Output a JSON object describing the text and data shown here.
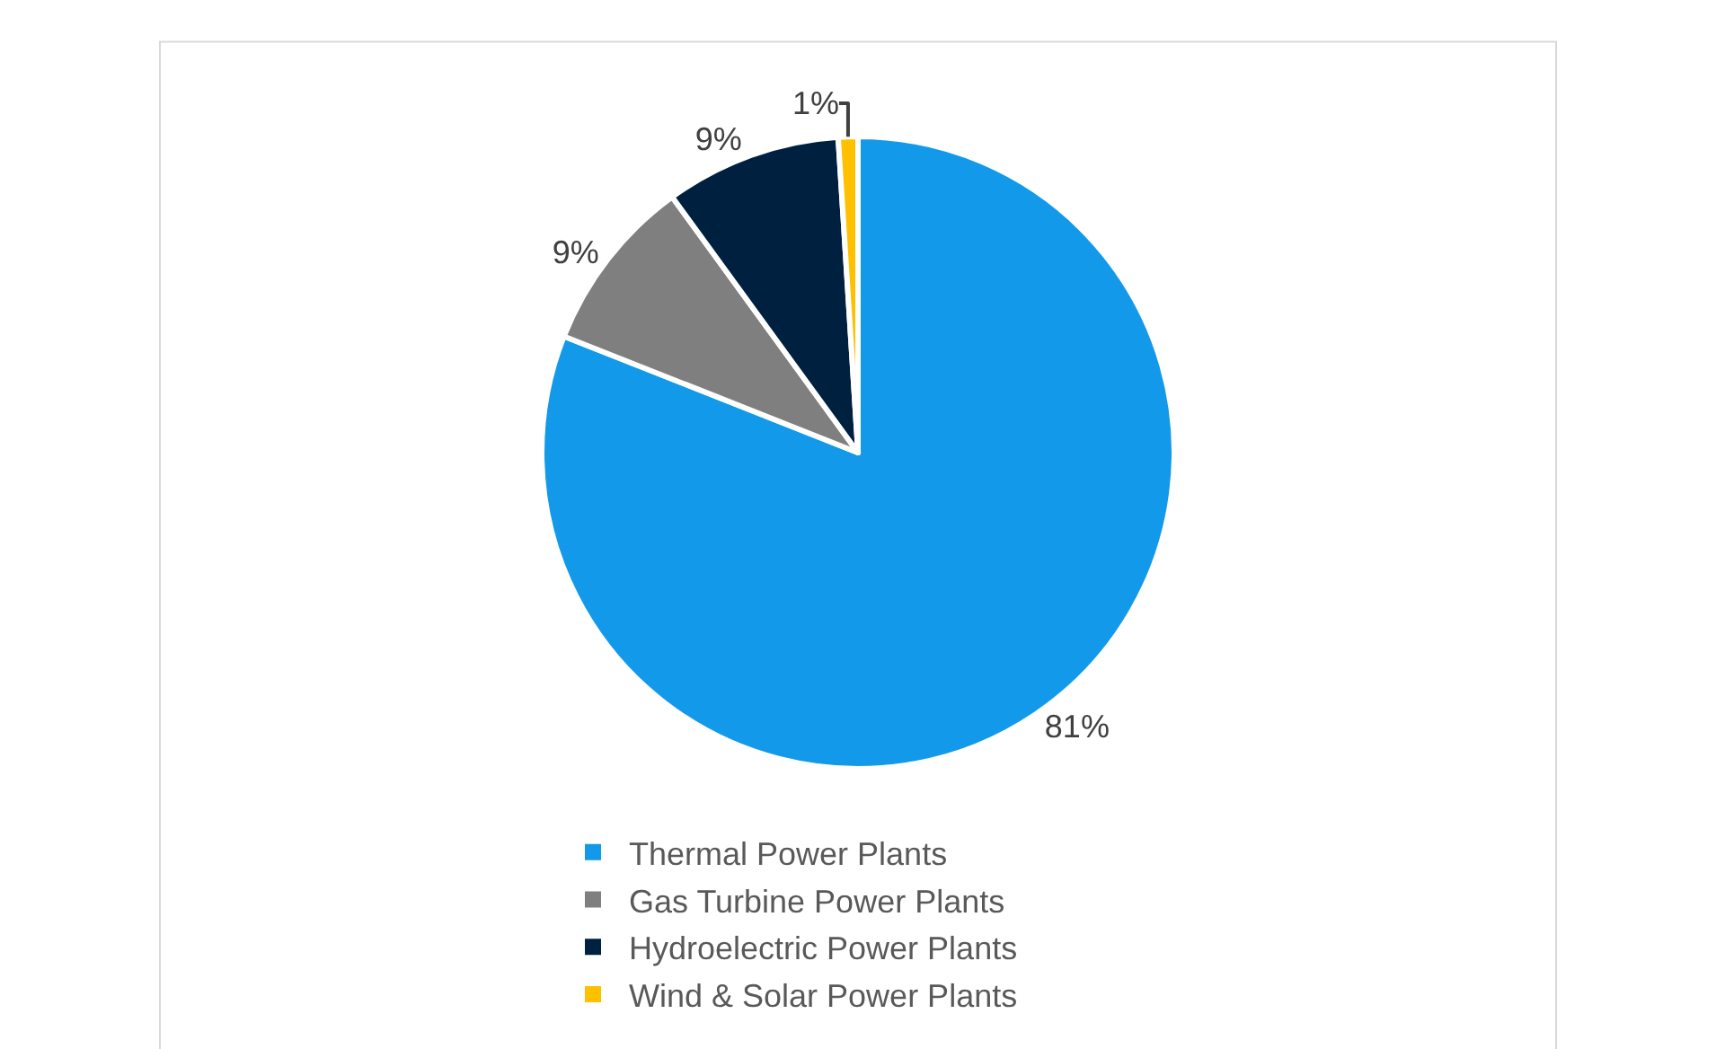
{
  "chart_data": {
    "type": "pie",
    "categories": [
      "Thermal Power Plants",
      "Gas Turbine Power Plants",
      "Hydroelectric Power Plants",
      "Wind & Solar Power Plants"
    ],
    "values": [
      81,
      9,
      9,
      1
    ],
    "colors": [
      "#1399ea",
      "#7f7f7f",
      "#002040",
      "#ffc000"
    ],
    "value_labels": [
      "81%",
      "9%",
      "9%",
      "1%"
    ],
    "legend": "bottom"
  }
}
